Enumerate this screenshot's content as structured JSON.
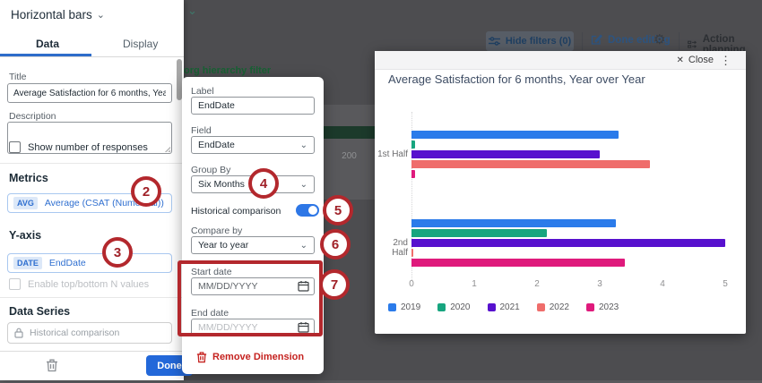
{
  "left_panel": {
    "widget_selector": "Horizontal bars",
    "tabs": [
      {
        "label": "Data"
      },
      {
        "label": "Display"
      }
    ],
    "fields": {
      "title_label": "Title",
      "title_value": "Average Satisfaction for 6 months, Year over Year",
      "description_label": "Description",
      "show_responses_label": "Show number of responses"
    },
    "sections": {
      "metrics_heading": "Metrics",
      "metric_badge": "AVG",
      "metric_value": "Average (CSAT (Numerical))",
      "yaxis_heading": "Y-axis",
      "yaxis_badge": "DATE",
      "yaxis_value": "EndDate",
      "topbottom_label": "Enable top/bottom N values",
      "data_series_heading": "Data Series",
      "data_series_item": "Historical comparison"
    },
    "footer": {
      "done_label": "Done"
    }
  },
  "dimension_popup": {
    "label_label": "Label",
    "label_value": "EndDate",
    "field_label": "Field",
    "field_value": "EndDate",
    "group_by_label": "Group By",
    "group_by_value": "Six Months",
    "historical_label": "Historical comparison",
    "compare_by_label": "Compare by",
    "compare_by_value": "Year to year",
    "start_date_label": "Start date",
    "start_date_text": "MM/DD/YYYY",
    "end_date_label": "End date",
    "end_date_placeholder": "MM/DD/YYYY",
    "remove_label": "Remove Dimension"
  },
  "toolbar": {
    "hide_filters": "Hide filters (0)",
    "done_editing": "Done editing",
    "action_planning": "Action planning"
  },
  "backdrop": {
    "hierarchy_link": "org hierarchy filter",
    "widget_value": "200"
  },
  "chart_popup": {
    "close_label": "Close",
    "title": "Average Satisfaction for 6 months, Year over Year"
  },
  "chart_data": {
    "type": "bar",
    "orientation": "horizontal",
    "title": "Average Satisfaction for 6 months, Year over Year",
    "categories": [
      "1st Half",
      "2nd Half"
    ],
    "series": [
      {
        "name": "2019",
        "color": "#2b7bea",
        "values": [
          3.3,
          3.25
        ]
      },
      {
        "name": "2020",
        "color": "#17a57f",
        "values": [
          0.05,
          2.15
        ]
      },
      {
        "name": "2021",
        "color": "#5711ce",
        "values": [
          3.0,
          5.0
        ]
      },
      {
        "name": "2022",
        "color": "#ef6d6b",
        "values": [
          3.8,
          0.03
        ]
      },
      {
        "name": "2023",
        "color": "#df1a7c",
        "values": [
          0.05,
          3.4
        ]
      }
    ],
    "xlim": [
      0,
      5
    ],
    "xticks": [
      0,
      1,
      2,
      3,
      4,
      5
    ],
    "grid": false,
    "legend_position": "bottom"
  },
  "annotations": {
    "numbers": [
      "2",
      "3",
      "4",
      "5",
      "6",
      "7"
    ]
  }
}
